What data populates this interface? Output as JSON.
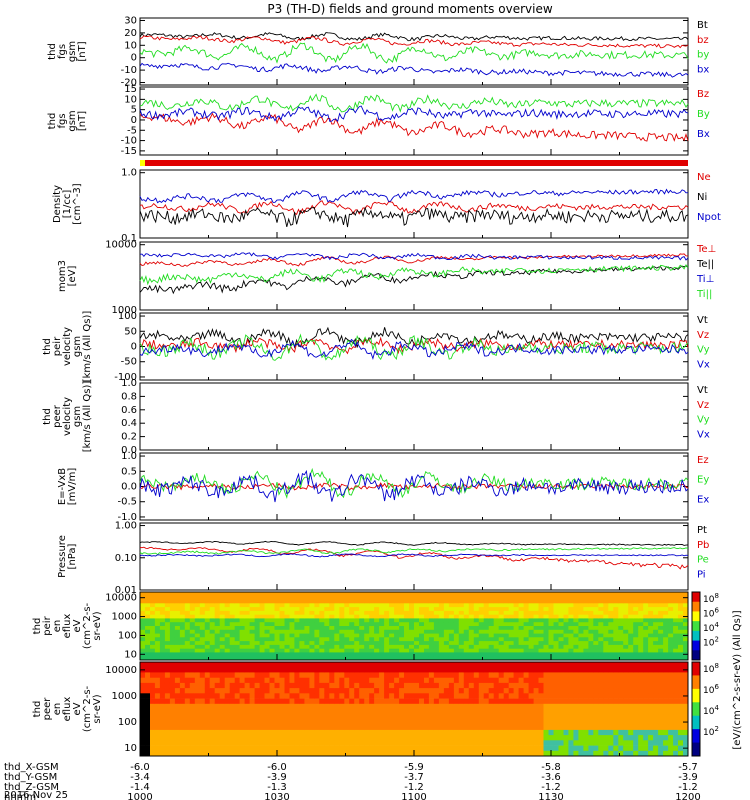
{
  "title": "P3 (TH-D) fields and ground moments overview",
  "colors": {
    "black": "#000000",
    "red": "#e00000",
    "green": "#22dd22",
    "blue": "#0000cc",
    "gray": "#888888"
  },
  "chart_data": [
    {
      "id": "fgs_gsm",
      "type": "line",
      "ylabel": [
        "thd",
        "fgs",
        "gsm",
        "[nT]"
      ],
      "yticks": [
        "30",
        "20",
        "10",
        "0",
        "-10",
        "-20"
      ],
      "ylim": [
        -22,
        32
      ],
      "grid": false,
      "series": [
        {
          "name": "Bt",
          "color": "#000000",
          "base": 18,
          "amp": 2,
          "noise": 1.5,
          "trend": -3
        },
        {
          "name": "bz",
          "color": "#e00000",
          "base": 16,
          "amp": 2,
          "noise": 1.5,
          "trend": -7
        },
        {
          "name": "by",
          "color": "#22dd22",
          "base": 5,
          "amp": 6,
          "noise": 3,
          "trend": -3
        },
        {
          "name": "bx",
          "color": "#0000cc",
          "base": -6,
          "amp": 2,
          "noise": 2,
          "trend": -8
        }
      ]
    },
    {
      "id": "fgs_gsm_bz",
      "type": "line",
      "ylabel": [
        "thd",
        "fgs",
        "gsm",
        "[nT]"
      ],
      "yticks": [
        "15",
        "10",
        "5",
        "0",
        "-5",
        "-10",
        "-15"
      ],
      "ylim": [
        -17,
        16
      ],
      "grid": false,
      "series": [
        {
          "name": "Bz",
          "color": "#e00000",
          "base": 1,
          "amp": 3,
          "noise": 2,
          "trend": -10
        },
        {
          "name": "By",
          "color": "#22dd22",
          "base": 8,
          "amp": 3,
          "noise": 2,
          "trend": 0
        },
        {
          "name": "Bx",
          "color": "#0000cc",
          "base": 3,
          "amp": 2,
          "noise": 2,
          "trend": 0
        }
      ]
    },
    {
      "id": "density",
      "type": "line",
      "ylabel": [
        "Density",
        "[1/cc]",
        "[cm^-3]"
      ],
      "yticks": [
        "1.0",
        "0.1"
      ],
      "ylim": [
        0.1,
        1.1
      ],
      "log": true,
      "grid": false,
      "series": [
        {
          "name": "Ne",
          "color": "#e00000",
          "base": 0.3,
          "amp": 0.05,
          "noise": 0.03,
          "trend": 0
        },
        {
          "name": "Ni",
          "color": "#000000",
          "base": 0.22,
          "amp": 0.03,
          "noise": 0.05,
          "trend": 0
        },
        {
          "name": "Npot",
          "color": "#0000cc",
          "base": 0.4,
          "amp": 0.06,
          "noise": 0.04,
          "trend": 0.12
        }
      ]
    },
    {
      "id": "temp",
      "type": "line",
      "ylabel": [
        "mom3",
        "[eV]"
      ],
      "yticks": [
        "10000",
        "1000"
      ],
      "ylim": [
        1000,
        11000
      ],
      "log": true,
      "grid": false,
      "series": [
        {
          "name": "Te⊥",
          "color": "#e00000",
          "base": 5000,
          "amp": 600,
          "noise": 300,
          "trend": 2000
        },
        {
          "name": "Te||",
          "color": "#000000",
          "base": 2000,
          "amp": 400,
          "noise": 300,
          "trend": 2500
        },
        {
          "name": "Ti⊥",
          "color": "#0000cc",
          "base": 7000,
          "amp": 500,
          "noise": 400,
          "trend": -800
        },
        {
          "name": "Ti||",
          "color": "#22dd22",
          "base": 3000,
          "amp": 500,
          "noise": 400,
          "trend": 1500
        }
      ]
    },
    {
      "id": "peir_vel",
      "type": "line",
      "ylabel": [
        "thd",
        "peir",
        "velocity",
        "gsm",
        "[km/s (All Qs)]"
      ],
      "yticks": [
        "100",
        "50",
        "0",
        "-50",
        "-100"
      ],
      "ylim": [
        -110,
        110
      ],
      "grid": false,
      "series": [
        {
          "name": "Vt",
          "color": "#000000",
          "base": 30,
          "amp": 20,
          "noise": 15,
          "trend": 0
        },
        {
          "name": "Vz",
          "color": "#e00000",
          "base": 5,
          "amp": 15,
          "noise": 15,
          "trend": 0
        },
        {
          "name": "Vy",
          "color": "#22dd22",
          "base": -5,
          "amp": 30,
          "noise": 20,
          "trend": 0
        },
        {
          "name": "Vx",
          "color": "#0000cc",
          "base": -10,
          "amp": 20,
          "noise": 15,
          "trend": 0
        }
      ]
    },
    {
      "id": "peer_vel",
      "type": "line",
      "ylabel": [
        "thd",
        "peer",
        "velocity",
        "gsm",
        "[km/s (All Qs)]"
      ],
      "yticks": [
        "1.0",
        "0.8",
        "0.6",
        "0.4",
        "0.2",
        "0.0"
      ],
      "ylim": [
        0,
        1
      ],
      "grid": false,
      "series": [
        {
          "name": "Vt",
          "color": "#000000"
        },
        {
          "name": "Vz",
          "color": "#e00000"
        },
        {
          "name": "Vy",
          "color": "#22dd22"
        },
        {
          "name": "Vx",
          "color": "#0000cc"
        }
      ]
    },
    {
      "id": "efield",
      "type": "line",
      "ylabel": [
        "E=-VxB",
        "[mV/m]"
      ],
      "yticks": [
        "1.0",
        "0.5",
        "0.0",
        "-0.5",
        "-1.0"
      ],
      "ylim": [
        -1.1,
        1.1
      ],
      "grid": false,
      "series": [
        {
          "name": "Ez",
          "color": "#e00000",
          "base": 0,
          "amp": 0.05,
          "noise": 0.08,
          "trend": 0
        },
        {
          "name": "Ey",
          "color": "#22dd22",
          "base": 0.1,
          "amp": 0.3,
          "noise": 0.2,
          "trend": 0
        },
        {
          "name": "Ex",
          "color": "#0000cc",
          "base": 0,
          "amp": 0.3,
          "noise": 0.25,
          "trend": 0
        }
      ]
    },
    {
      "id": "pressure",
      "type": "line",
      "ylabel": [
        "Pressure",
        "[nPa]"
      ],
      "yticks": [
        "1.00",
        "0.10",
        "0.01"
      ],
      "ylim": [
        0.01,
        1.2
      ],
      "log": true,
      "grid": false,
      "series": [
        {
          "name": "Pt",
          "color": "#000000",
          "base": 0.3,
          "amp": 0.03,
          "noise": 0.01,
          "trend": -0.05
        },
        {
          "name": "Pb",
          "color": "#e00000",
          "base": 0.2,
          "amp": 0.03,
          "noise": 0.01,
          "trend": -0.15
        },
        {
          "name": "Pe",
          "color": "#22dd22",
          "base": 0.14,
          "amp": 0.02,
          "noise": 0.01,
          "trend": 0.06
        },
        {
          "name": "Pi",
          "color": "#0000cc",
          "base": 0.12,
          "amp": 0.01,
          "noise": 0.005,
          "trend": 0
        }
      ]
    },
    {
      "id": "peir_en",
      "type": "heatmap",
      "ylabel": [
        "thd",
        "peir",
        "en",
        "eflux",
        "eV",
        "(cm^2-s-",
        "sr-eV)"
      ],
      "yticks": [
        "10000",
        "1000",
        "100",
        "10"
      ],
      "ylim": [
        5,
        20000
      ],
      "log": true
    },
    {
      "id": "peer_en",
      "type": "heatmap",
      "ylabel": [
        "thd",
        "peer",
        "en",
        "eflux",
        "eV",
        "(cm^2-s-",
        "sr-eV)"
      ],
      "yticks": [
        "10000",
        "1000",
        "100",
        "10"
      ],
      "ylim": [
        5,
        20000
      ],
      "log": true
    }
  ],
  "colorbar": {
    "ticks": [
      "10^8",
      "10^6",
      "10^4",
      "10^2"
    ],
    "ticks2": [
      "10^8",
      "10^6",
      "10^4",
      "10^2"
    ],
    "label": "[eV/(cm^2-s-sr-eV) (All Qs)]"
  },
  "xaxis": {
    "rows": [
      {
        "label": "thd_X-GSM",
        "values": [
          "-6.0",
          "-6.0",
          "-5.9",
          "-5.8",
          "-5.7"
        ]
      },
      {
        "label": "thd_Y-GSM",
        "values": [
          "-3.4",
          "-3.9",
          "-3.7",
          "-3.6",
          "-3.9"
        ]
      },
      {
        "label": "thd_Z-GSM",
        "values": [
          "-1.4",
          "-1.3",
          "-1.2",
          "-1.2",
          "-1.2"
        ]
      },
      {
        "label": "hhmm",
        "values": [
          "1000",
          "1030",
          "1100",
          "1130",
          "1200"
        ]
      }
    ],
    "date": "2016 Nov 25"
  }
}
